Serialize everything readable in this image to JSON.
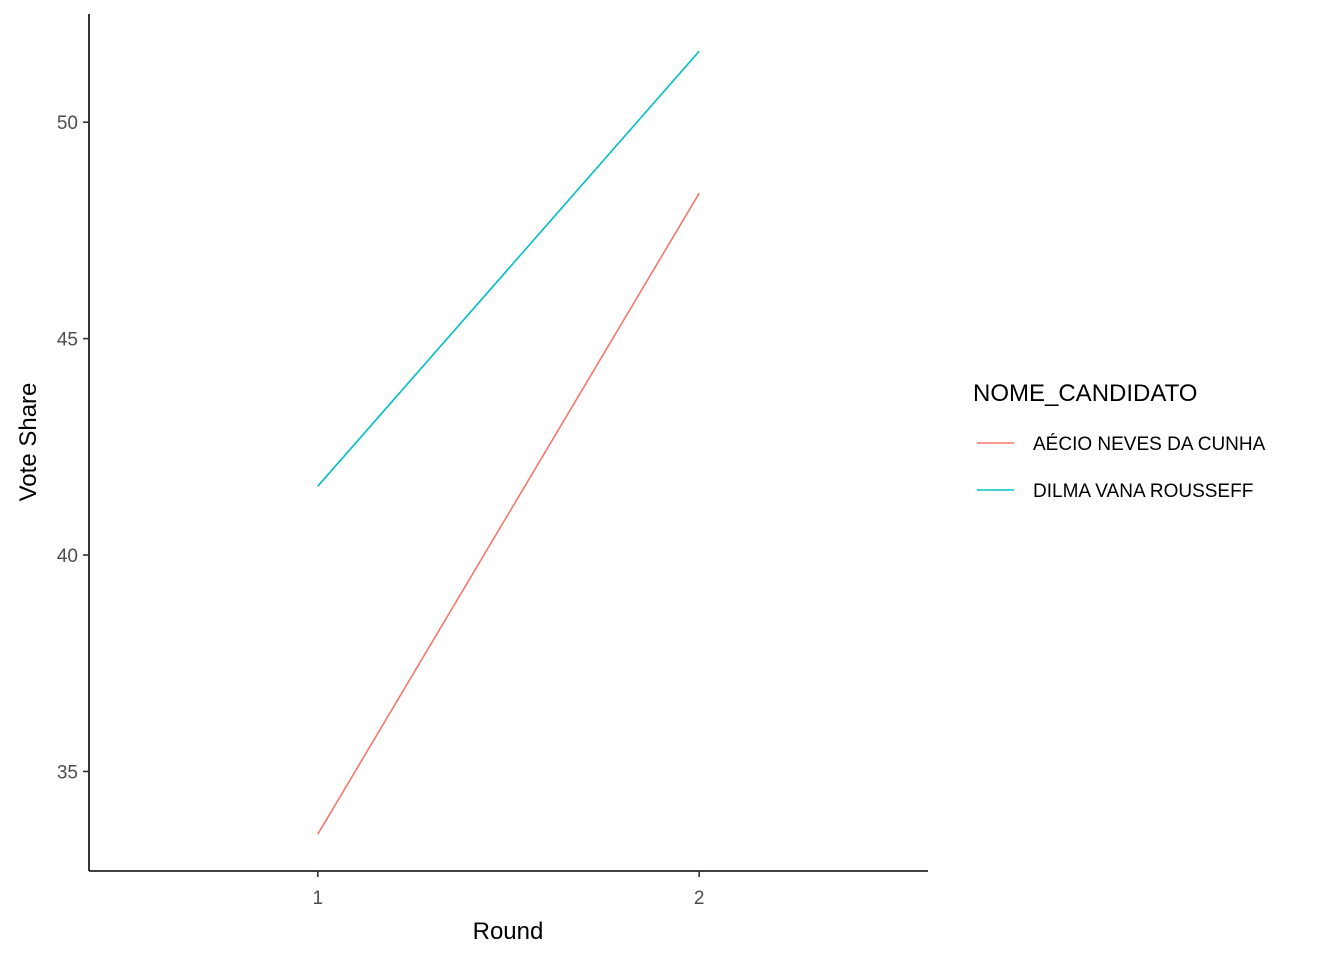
{
  "chart_data": {
    "type": "line",
    "title": "",
    "xlabel": "Round",
    "ylabel": "Vote Share",
    "x": [
      1,
      2
    ],
    "xticks": [
      "1",
      "2"
    ],
    "yticks": [
      "35",
      "40",
      "45",
      "50"
    ],
    "xlim": [
      0.4,
      2.6
    ],
    "ylim": [
      32.7,
      52.5
    ],
    "grid": false,
    "legend": {
      "title": "NOME_CANDIDATO",
      "placement": "right"
    },
    "series": [
      {
        "name": "AÉCIO NEVES DA CUNHA",
        "values": [
          33.55,
          48.36
        ],
        "color": "#F8766D"
      },
      {
        "name": "DILMA VANA ROUSSEFF",
        "values": [
          41.59,
          51.64
        ],
        "color": "#00BFC4"
      }
    ]
  }
}
